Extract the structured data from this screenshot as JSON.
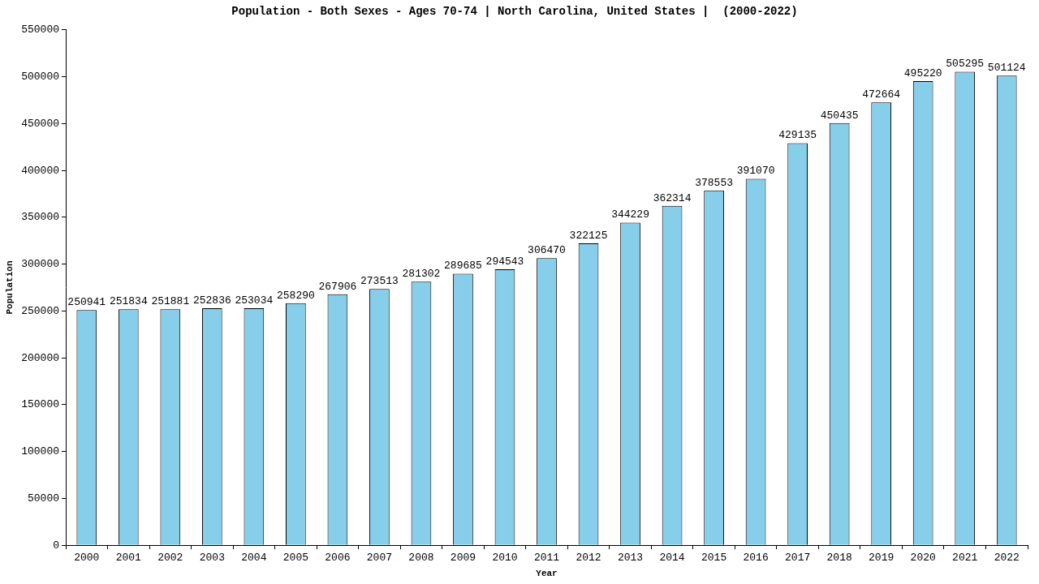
{
  "chart_data": {
    "type": "bar",
    "title": "Population - Both Sexes - Ages 70-74 | North Carolina, United States |  (2000-2022)",
    "x_label": "Year",
    "y_label": "Population",
    "categories": [
      "2000",
      "2001",
      "2002",
      "2003",
      "2004",
      "2005",
      "2006",
      "2007",
      "2008",
      "2009",
      "2010",
      "2011",
      "2012",
      "2013",
      "2014",
      "2015",
      "2016",
      "2017",
      "2018",
      "2019",
      "2020",
      "2021",
      "2022"
    ],
    "values": [
      250941,
      251834,
      251881,
      252836,
      253034,
      258290,
      267906,
      273513,
      281302,
      289685,
      294543,
      306470,
      322125,
      344229,
      362314,
      378553,
      391070,
      429135,
      450435,
      472664,
      495220,
      505295,
      501124
    ],
    "color": "#87ceeb",
    "ylim": [
      0,
      550000
    ],
    "yticks": [
      0,
      50000,
      100000,
      150000,
      200000,
      250000,
      300000,
      350000,
      400000,
      450000,
      500000,
      550000
    ],
    "grid": false,
    "data_labels": true
  }
}
